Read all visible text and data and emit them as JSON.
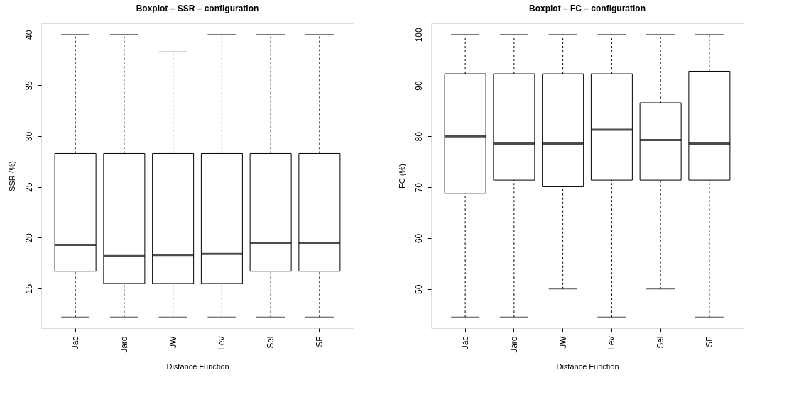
{
  "chart_data": [
    {
      "type": "box",
      "title": "Boxplot – SSR – configuration",
      "xlabel": "Distance Function",
      "ylabel": "SSR (%)",
      "categories": [
        "Jac",
        "Jaro",
        "JW",
        "Lev",
        "Sel",
        "SF"
      ],
      "ylim": [
        11.1,
        41.1
      ],
      "yticks": [
        15,
        20,
        25,
        30,
        35,
        40
      ],
      "grid": false,
      "boxes": [
        {
          "low": 12.2,
          "q1": 16.7,
          "median": 19.3,
          "q3": 28.3,
          "high": 40
        },
        {
          "low": 12.2,
          "q1": 15.5,
          "median": 18.2,
          "q3": 28.3,
          "high": 40
        },
        {
          "low": 12.2,
          "q1": 15.5,
          "median": 18.3,
          "q3": 28.3,
          "high": 38.3
        },
        {
          "low": 12.2,
          "q1": 15.5,
          "median": 18.4,
          "q3": 28.3,
          "high": 40
        },
        {
          "low": 12.2,
          "q1": 16.7,
          "median": 19.5,
          "q3": 28.3,
          "high": 40
        },
        {
          "low": 12.2,
          "q1": 16.7,
          "median": 19.5,
          "q3": 28.3,
          "high": 40
        }
      ]
    },
    {
      "type": "box",
      "title": "Boxplot – FC – configuration",
      "xlabel": "Distance Function",
      "ylabel": "FC (%)",
      "categories": [
        "Jac",
        "Jaro",
        "JW",
        "Lev",
        "Sel",
        "SF"
      ],
      "ylim": [
        42.3,
        102.2
      ],
      "yticks": [
        50,
        60,
        70,
        80,
        90,
        100
      ],
      "grid": false,
      "boxes": [
        {
          "low": 44.5,
          "q1": 68.8,
          "median": 80,
          "q3": 92.3,
          "high": 100
        },
        {
          "low": 44.5,
          "q1": 71.4,
          "median": 78.6,
          "q3": 92.3,
          "high": 100
        },
        {
          "low": 50,
          "q1": 70.1,
          "median": 78.6,
          "q3": 92.3,
          "high": 100
        },
        {
          "low": 44.5,
          "q1": 71.4,
          "median": 81.3,
          "q3": 92.3,
          "high": 100
        },
        {
          "low": 50,
          "q1": 71.4,
          "median": 79.3,
          "q3": 86.6,
          "high": 100
        },
        {
          "low": 44.5,
          "q1": 71.4,
          "median": 78.6,
          "q3": 92.8,
          "high": 100
        }
      ]
    }
  ]
}
